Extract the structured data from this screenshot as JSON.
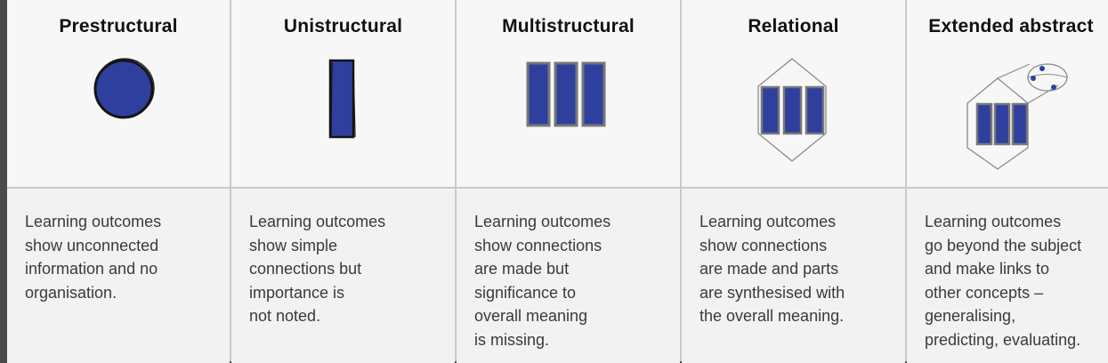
{
  "colors": {
    "fill": "#2e3f9e",
    "ink": "#1a1a1a",
    "line": "#8a8a8a"
  },
  "levels": [
    {
      "title": "Prestructural",
      "icon": "circle-icon",
      "description": "Learning outcomes\nshow unconnected\ninformation and no\norganisation."
    },
    {
      "title": "Unistructural",
      "icon": "single-bar-icon",
      "description": "Learning outcomes\nshow simple\nconnections but\nimportance is\nnot noted."
    },
    {
      "title": "Multistructural",
      "icon": "three-bars-icon",
      "description": "Learning outcomes\nshow connections\nare made but\nsignificance to\noverall meaning\nis missing."
    },
    {
      "title": "Relational",
      "icon": "linked-bars-icon",
      "description": "Learning outcomes\nshow connections\nare made and parts\nare synthesised with\nthe overall meaning."
    },
    {
      "title": "Extended abstract",
      "icon": "extended-bars-icon",
      "description": "Learning outcomes\ngo beyond the subject\nand make links to\nother concepts –\ngeneralising,\npredicting, evaluating."
    }
  ]
}
